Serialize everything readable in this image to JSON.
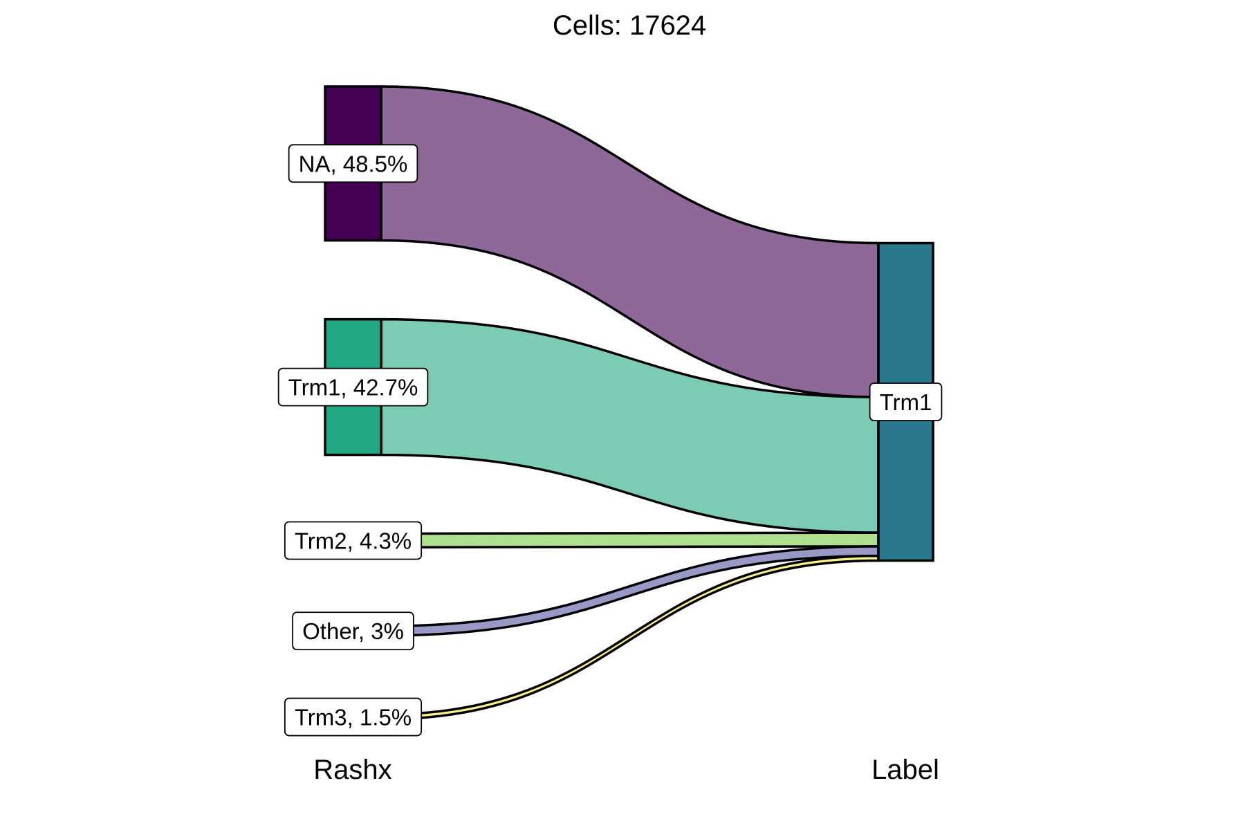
{
  "chart_data": {
    "type": "sankey",
    "title": "Cells:  17624",
    "axes": [
      "Rashx",
      "Label"
    ],
    "source_nodes": [
      {
        "name": "NA",
        "label": "NA, 48.5%",
        "percent": 48.5,
        "node_color": "#440154",
        "flow_color": "#8E6898"
      },
      {
        "name": "Trm1",
        "label": "Trm1, 42.7%",
        "percent": 42.7,
        "node_color": "#22A884",
        "flow_color": "#7BCBB5"
      },
      {
        "name": "Trm2",
        "label": "Trm2, 4.3%",
        "percent": 4.3,
        "node_color": "#7AD151",
        "flow_color": "#AEE08F"
      },
      {
        "name": "Other",
        "label": "Other, 3%",
        "percent": 3.0,
        "node_color": "#414487",
        "flow_color": "#9A98C4"
      },
      {
        "name": "Trm3",
        "label": "Trm3, 1.5%",
        "percent": 1.5,
        "node_color": "#FDE725",
        "flow_color": "#FEF08A"
      }
    ],
    "target_nodes": [
      {
        "name": "Trm1",
        "label": "Trm1",
        "percent": 100,
        "node_color": "#2A788E"
      }
    ],
    "flows": [
      {
        "from": "NA",
        "to": "Trm1",
        "percent": 48.5
      },
      {
        "from": "Trm1",
        "to": "Trm1",
        "percent": 42.7
      },
      {
        "from": "Trm2",
        "to": "Trm1",
        "percent": 4.3
      },
      {
        "from": "Other",
        "to": "Trm1",
        "percent": 3.0
      },
      {
        "from": "Trm3",
        "to": "Trm1",
        "percent": 1.5
      }
    ]
  }
}
